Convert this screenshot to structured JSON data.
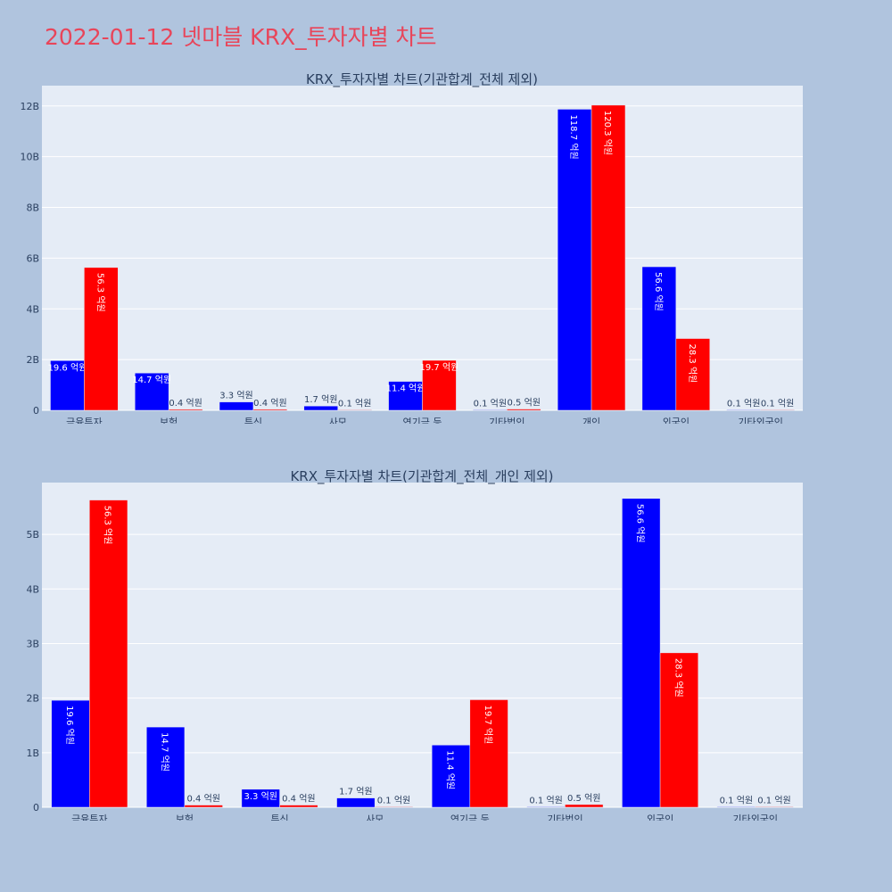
{
  "page": {
    "title": "2022-01-12 넷마블 KRX_투자자별 차트"
  },
  "colors": {
    "background": "#b0c4de",
    "plot_bg": "#e5ecf6",
    "title": "#e8455a",
    "buy": "#0000ff",
    "sell": "#ff0000"
  },
  "chart_data": [
    {
      "type": "bar",
      "title": "KRX_투자자별 차트(기관합계_전체 제외)",
      "categories": [
        "금융투자",
        "보험",
        "투신",
        "사모",
        "연기금 등",
        "기타법인",
        "개인",
        "외국인",
        "기타외국인"
      ],
      "series": [
        {
          "color": "#0000ff",
          "values": [
            1960000000,
            1470000000,
            330000000,
            170000000,
            1140000000,
            10000000,
            11870000000,
            5660000000,
            10000000
          ],
          "labels": [
            "19.6 억원",
            "14.7 억원",
            "3.3 억원",
            "1.7 억원",
            "11.4 억원",
            "0.1 억원",
            "118.7 억원",
            "56.6 억원",
            "0.1 억원"
          ]
        },
        {
          "color": "#ff0000",
          "values": [
            5630000000,
            40000000,
            40000000,
            10000000,
            1970000000,
            50000000,
            12030000000,
            2830000000,
            10000000
          ],
          "labels": [
            "56.3 억원",
            "0.4 억원",
            "0.4 억원",
            "0.1 억원",
            "19.7 억원",
            "0.5 억원",
            "120.3 억원",
            "28.3 억원",
            "0.1 억원"
          ]
        }
      ],
      "ylim": [
        0,
        12800000000
      ],
      "yticks": [
        0,
        2000000000,
        4000000000,
        6000000000,
        8000000000,
        10000000000,
        12000000000
      ],
      "yticklabels": [
        "0",
        "2B",
        "4B",
        "6B",
        "8B",
        "10B",
        "12B"
      ],
      "grid": true
    },
    {
      "type": "bar",
      "title": "KRX_투자자별 차트(기관합계_전체_개인 제외)",
      "categories": [
        "금융투자",
        "보험",
        "투신",
        "사모",
        "연기금 등",
        "기타법인",
        "외국인",
        "기타외국인"
      ],
      "series": [
        {
          "color": "#0000ff",
          "values": [
            1960000000,
            1470000000,
            330000000,
            170000000,
            1140000000,
            10000000,
            5660000000,
            10000000
          ],
          "labels": [
            "19.6 억원",
            "14.7 억원",
            "3.3 억원",
            "1.7 억원",
            "11.4 억원",
            "0.1 억원",
            "56.6 억원",
            "0.1 억원"
          ]
        },
        {
          "color": "#ff0000",
          "values": [
            5630000000,
            40000000,
            40000000,
            10000000,
            1970000000,
            50000000,
            2830000000,
            10000000
          ],
          "labels": [
            "56.3 억원",
            "0.4 억원",
            "0.4 억원",
            "0.1 억원",
            "19.7 억원",
            "0.5 억원",
            "28.3 억원",
            "0.1 억원"
          ]
        }
      ],
      "ylim": [
        0,
        5950000000
      ],
      "yticks": [
        0,
        1000000000,
        2000000000,
        3000000000,
        4000000000,
        5000000000
      ],
      "yticklabels": [
        "0",
        "1B",
        "2B",
        "3B",
        "4B",
        "5B"
      ],
      "grid": true
    }
  ]
}
